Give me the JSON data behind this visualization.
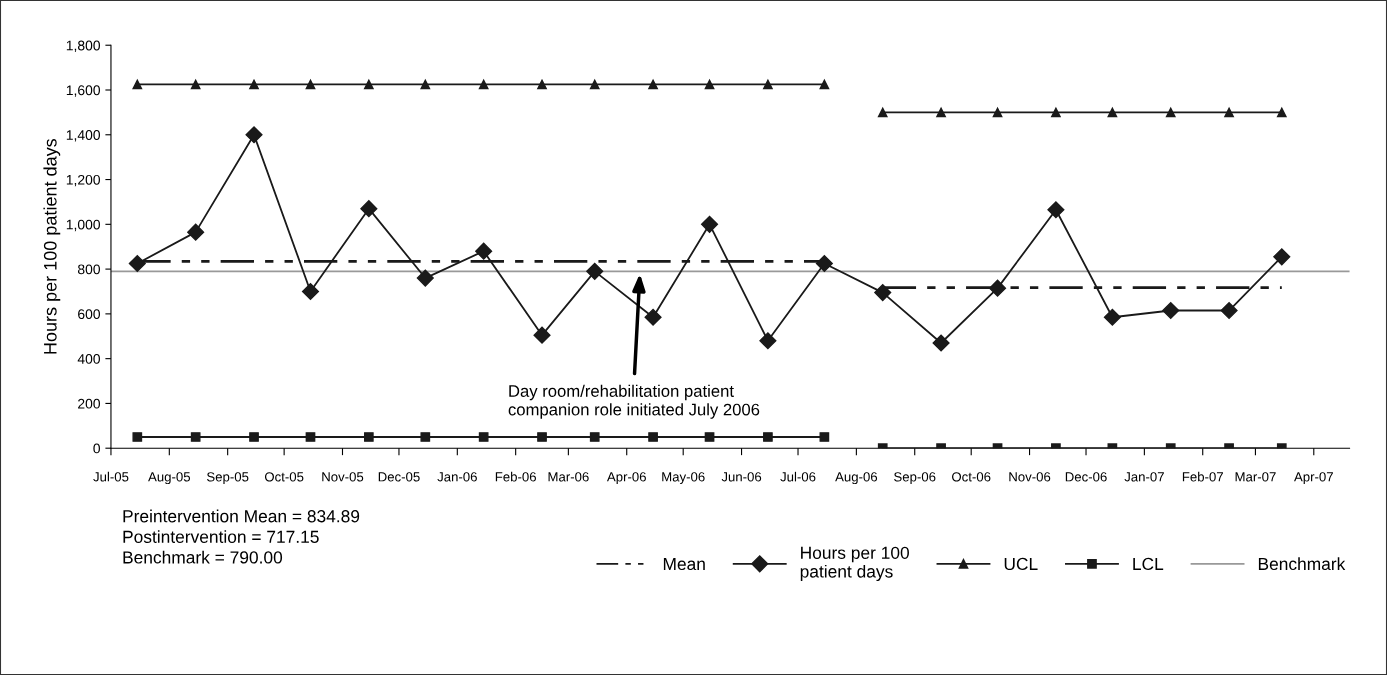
{
  "chart_data": {
    "type": "line",
    "ylabel": "Hours per 100 patient days",
    "x": [
      "2005-07-15",
      "2005-08-15",
      "2005-09-15",
      "2005-10-15",
      "2005-11-15",
      "2005-12-15",
      "2006-01-15",
      "2006-02-15",
      "2006-03-15",
      "2006-04-15",
      "2006-05-15",
      "2006-06-15",
      "2006-07-15",
      "2006-08-15",
      "2006-09-15",
      "2006-10-15",
      "2006-11-15",
      "2006-12-15",
      "2007-01-15",
      "2007-02-15",
      "2007-03-15"
    ],
    "series": [
      {
        "name": null,
        "color": "#1a1a1a",
        "marker": "none",
        "line_style": "dashed",
        "values": [
          835,
          835,
          835,
          835,
          835,
          835,
          835,
          835,
          835,
          835,
          835,
          835,
          835,
          null,
          null,
          null,
          null,
          null,
          null,
          null,
          null
        ]
      },
      {
        "name": "Mean",
        "color": "#1a1a1a",
        "marker": "none",
        "line_style": "dashed",
        "values": [
          null,
          null,
          null,
          null,
          null,
          null,
          null,
          null,
          null,
          null,
          null,
          null,
          null,
          717,
          717,
          717,
          717,
          717,
          717,
          717,
          717
        ]
      },
      {
        "name": "Hours per 100\npatient days",
        "color": "#1a1a1a",
        "marker": "diamond",
        "line_style": "solid",
        "values": [
          825,
          965,
          1400,
          700,
          1070,
          760,
          880,
          505,
          790,
          585,
          1000,
          480,
          825,
          695,
          470,
          715,
          1065,
          585,
          615,
          615,
          855
        ]
      },
      {
        "name": "UCL",
        "color": "#1a1a1a",
        "marker": "triangle",
        "line_style": "solid",
        "values": [
          1625,
          1625,
          1625,
          1625,
          1625,
          1625,
          1625,
          1625,
          1625,
          1625,
          1625,
          1625,
          1625,
          null,
          null,
          null,
          null,
          null,
          null,
          null,
          null
        ]
      },
      {
        "name": null,
        "color": "#1a1a1a",
        "marker": "triangle",
        "line_style": "solid",
        "values": [
          null,
          null,
          null,
          null,
          null,
          null,
          null,
          null,
          null,
          null,
          null,
          null,
          null,
          1500,
          1500,
          1500,
          1500,
          1500,
          1500,
          1500,
          1500
        ]
      },
      {
        "name": "LCL",
        "color": "#1a1a1a",
        "marker": "square",
        "line_style": "solid",
        "values": [
          50,
          50,
          50,
          50,
          50,
          50,
          50,
          50,
          50,
          50,
          50,
          50,
          50,
          null,
          null,
          null,
          null,
          null,
          null,
          null,
          null
        ]
      },
      {
        "name": null,
        "color": "#1a1a1a",
        "marker": "square",
        "line_style": "solid",
        "values": [
          null,
          null,
          null,
          null,
          null,
          null,
          null,
          null,
          null,
          null,
          null,
          null,
          null,
          0,
          0,
          0,
          0,
          0,
          0,
          0,
          0
        ]
      }
    ],
    "ref_lines": [
      {
        "axis": "y",
        "value": 790,
        "label": "Benchmark",
        "color": "#999999",
        "line_style": "solid"
      }
    ],
    "xlim": [
      "2005-07-01",
      "2007-04-20"
    ],
    "xticks": [
      {
        "value": "2005-07-01",
        "label": "Jul-05"
      },
      {
        "value": "2005-08-01",
        "label": "Aug-05"
      },
      {
        "value": "2005-09-01",
        "label": "Sep-05"
      },
      {
        "value": "2005-10-01",
        "label": "Oct-05"
      },
      {
        "value": "2005-11-01",
        "label": "Nov-05"
      },
      {
        "value": "2005-12-01",
        "label": "Dec-05"
      },
      {
        "value": "2006-01-01",
        "label": "Jan-06"
      },
      {
        "value": "2006-02-01",
        "label": "Feb-06"
      },
      {
        "value": "2006-03-01",
        "label": "Mar-06"
      },
      {
        "value": "2006-04-01",
        "label": "Apr-06"
      },
      {
        "value": "2006-05-01",
        "label": "May-06"
      },
      {
        "value": "2006-06-01",
        "label": "Jun-06"
      },
      {
        "value": "2006-07-01",
        "label": "Jul-06"
      },
      {
        "value": "2006-08-01",
        "label": "Aug-06"
      },
      {
        "value": "2006-09-01",
        "label": "Sep-06"
      },
      {
        "value": "2006-10-01",
        "label": "Oct-06"
      },
      {
        "value": "2006-11-01",
        "label": "Nov-06"
      },
      {
        "value": "2006-12-01",
        "label": "Dec-06"
      },
      {
        "value": "2007-01-01",
        "label": "Jan-07"
      },
      {
        "value": "2007-02-01",
        "label": "Feb-07"
      },
      {
        "value": "2007-03-01",
        "label": "Mar-07"
      },
      {
        "value": "2007-04-01",
        "label": "Apr-07"
      }
    ],
    "ylim": [
      0,
      1800
    ],
    "yticks": [
      0,
      {
        "value": 200,
        "label": "200"
      },
      {
        "value": 400,
        "label": "400"
      },
      {
        "value": 600,
        "label": "600"
      },
      {
        "value": 800,
        "label": "800"
      },
      {
        "value": 1000,
        "label": "1,000"
      },
      {
        "value": 1200,
        "label": "1,200"
      },
      {
        "value": 1400,
        "label": "1,400"
      },
      {
        "value": 1600,
        "label": "1,600"
      },
      {
        "value": 1800,
        "label": "1,800"
      }
    ],
    "grid": false,
    "legend": "bottom",
    "annotations": [
      {
        "text": "Day room/rehabilitation patient\ncompanion role initiated July 2006",
        "x": "2006-04-08",
        "y": 780
      },
      "Preintervention Mean = 834.89\nPostintervention = 717.15\nBenchmark = 790.00"
    ]
  }
}
